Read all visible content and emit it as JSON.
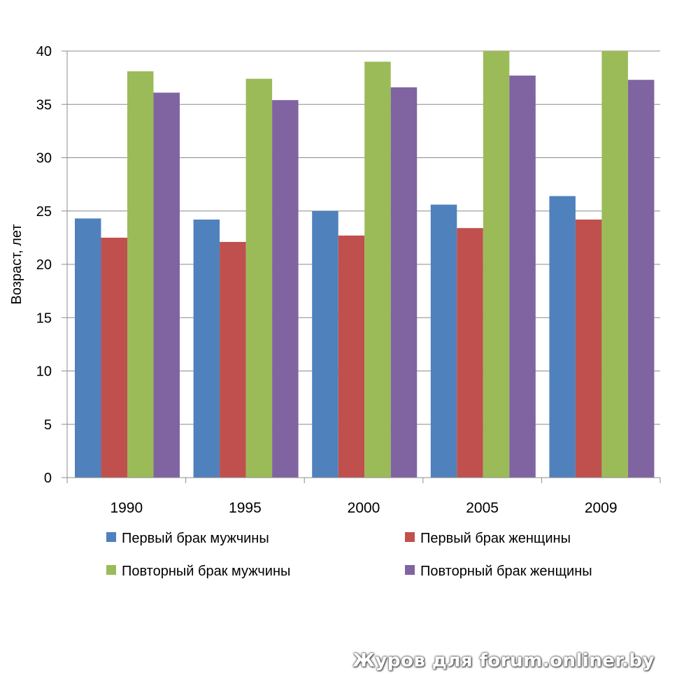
{
  "chart_data": {
    "type": "bar",
    "title": "",
    "xlabel": "",
    "ylabel": "Возраст, лет",
    "ylim": [
      0,
      40
    ],
    "yticks": [
      0,
      5,
      10,
      15,
      20,
      25,
      30,
      35,
      40
    ],
    "grid": true,
    "legend_position": "bottom",
    "categories": [
      "1990",
      "1995",
      "2000",
      "2005",
      "2009"
    ],
    "series": [
      {
        "name": "Первый брак мужчины",
        "color": "#4F81BD",
        "values": [
          24.3,
          24.2,
          25.0,
          25.6,
          26.4
        ]
      },
      {
        "name": "Первый брак женщины",
        "color": "#C0504D",
        "values": [
          22.5,
          22.1,
          22.7,
          23.4,
          24.2
        ]
      },
      {
        "name": "Повторный брак мужчины",
        "color": "#9BBB59",
        "values": [
          38.1,
          37.4,
          39.0,
          40.0,
          40.0
        ]
      },
      {
        "name": "Повторный брак женщины",
        "color": "#8064A2",
        "values": [
          36.1,
          35.4,
          36.6,
          37.7,
          37.3
        ]
      }
    ]
  },
  "watermark": "Журов для forum.onliner.by"
}
